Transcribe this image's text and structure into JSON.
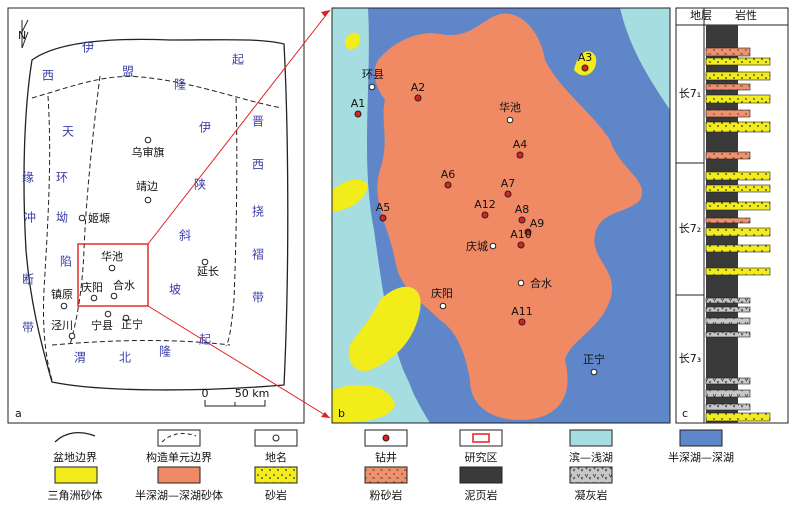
{
  "panel_a": {
    "label": "a",
    "north": "N",
    "regions": [
      "伊",
      "盟",
      "隆",
      "起",
      "西",
      "缘",
      "冲",
      "断",
      "带",
      "天",
      "环",
      "坳",
      "陷",
      "伊",
      "陕",
      "斜",
      "坡",
      "晋",
      "西",
      "挠",
      "褶",
      "带",
      "渭",
      "北",
      "隆",
      "起"
    ],
    "places": [
      "乌审旗",
      "靖边",
      "姬塬",
      "华池",
      "庆阳",
      "合水",
      "镇原",
      "泾川",
      "宁县",
      "正宁",
      "延长"
    ],
    "scale": [
      "0",
      "50 km"
    ]
  },
  "panel_b": {
    "label": "b",
    "wells": [
      "A1",
      "A2",
      "A3",
      "A4",
      "A5",
      "A6",
      "A7",
      "A8",
      "A9",
      "A10",
      "A11",
      "A12"
    ],
    "places": [
      "环县",
      "华池",
      "庆城",
      "合水",
      "庆阳",
      "正宁"
    ]
  },
  "panel_c": {
    "label": "c",
    "headers": [
      "地层",
      "岩性"
    ],
    "members": [
      "长7₁",
      "长7₂",
      "长7₃"
    ]
  },
  "legend": [
    "盆地边界",
    "构造单元边界",
    "地名",
    "钻井",
    "研究区",
    "滨—浅湖",
    "半深湖—深湖",
    "三角洲砂体",
    "半深湖—深湖砂体",
    "砂岩",
    "粉砂岩",
    "泥页岩",
    "凝灰岩"
  ]
}
